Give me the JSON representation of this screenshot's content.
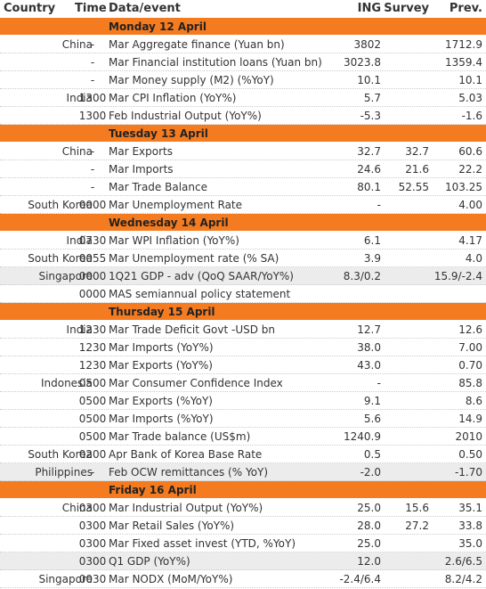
{
  "header": {
    "country": "Country",
    "time": "Time",
    "event": "Data/event",
    "ing": "ING",
    "survey": "Survey",
    "prev": "Prev."
  },
  "days": [
    {
      "title": "Monday 12 April",
      "rows": [
        {
          "country": "China",
          "time": "-",
          "event": "Mar Aggregate finance (Yuan bn)",
          "ing": "3802",
          "prev": "1712.9"
        },
        {
          "time": "-",
          "event": "Mar Financial institution loans (Yuan bn)",
          "ing": "3023.8",
          "prev": "1359.4"
        },
        {
          "time": "-",
          "event": "Mar Money supply (M2) (%YoY)",
          "ing": "10.1",
          "prev": "10.1"
        },
        {
          "country": "India",
          "time": "1300",
          "event": "Mar CPI Inflation (YoY%)",
          "ing": "5.7",
          "prev": "5.03"
        },
        {
          "time": "1300",
          "event": "Feb Industrial Output (YoY%)",
          "ing": "-5.3",
          "prev": "-1.6"
        }
      ]
    },
    {
      "title": "Tuesday 13 April",
      "rows": [
        {
          "country": "China",
          "time": "-",
          "event": "Mar Exports",
          "ing": "32.7",
          "survey": "32.7",
          "prev": "60.6"
        },
        {
          "time": "-",
          "event": "Mar Imports",
          "ing": "24.6",
          "survey": "21.6",
          "prev": "22.2"
        },
        {
          "time": "-",
          "event": "Mar Trade Balance",
          "ing": "80.1",
          "survey": "52.55",
          "prev": "103.25"
        },
        {
          "country": "South Korea",
          "time": "0000",
          "event": "Mar Unemployment Rate",
          "ing": "-",
          "prev": "4.00"
        }
      ]
    },
    {
      "title": "Wednesday 14 April",
      "rows": [
        {
          "country": "India",
          "time": "0730",
          "event": "Mar WPI Inflation (YoY%)",
          "ing": "6.1",
          "prev": "4.17"
        },
        {
          "country": "South Korea",
          "time": "0055",
          "event": "Mar Unemployment rate (% SA)",
          "ing": "3.9",
          "prev": "4.0"
        },
        {
          "country": "Singapore",
          "time": "0000",
          "event": "1Q21 GDP - adv (QoQ SAAR/YoY%)",
          "ing": "8.3/0.2",
          "prev": "15.9/-2.4",
          "shaded": true
        },
        {
          "time": "0000",
          "event": "MAS semiannual policy statement"
        }
      ]
    },
    {
      "title": "Thursday 15 April",
      "rows": [
        {
          "country": "India",
          "time": "1230",
          "event": "Mar Trade Deficit Govt -USD bn",
          "ing": "12.7",
          "prev": "12.6"
        },
        {
          "time": "1230",
          "event": "Mar Imports (YoY%)",
          "ing": "38.0",
          "prev": "7.00"
        },
        {
          "time": "1230",
          "event": "Mar Exports (YoY%)",
          "ing": "43.0",
          "prev": "0.70"
        },
        {
          "country": "Indonesia",
          "time": "0500",
          "event": "Mar Consumer Confidence Index",
          "ing": "-",
          "prev": "85.8"
        },
        {
          "time": "0500",
          "event": "Mar Exports (%YoY)",
          "ing": "9.1",
          "prev": "8.6"
        },
        {
          "time": "0500",
          "event": "Mar Imports (%YoY)",
          "ing": "5.6",
          "prev": "14.9"
        },
        {
          "time": "0500",
          "event": "Mar Trade balance (US$m)",
          "ing": "1240.9",
          "prev": "2010"
        },
        {
          "country": "South Korea",
          "time": "0200",
          "event": "Apr Bank of Korea Base Rate",
          "ing": "0.5",
          "prev": "0.50"
        },
        {
          "country": "Philippines",
          "time": "-",
          "event": "Feb OCW remittances (% YoY)",
          "ing": "-2.0",
          "prev": "-1.70",
          "shaded": true
        }
      ]
    },
    {
      "title": "Friday 16 April",
      "rows": [
        {
          "country": "China",
          "time": "0300",
          "event": "Mar Industrial Output (YoY%)",
          "ing": "25.0",
          "survey": "15.6",
          "prev": "35.1"
        },
        {
          "time": "0300",
          "event": "Mar Retail Sales (YoY%)",
          "ing": "28.0",
          "survey": "27.2",
          "prev": "33.8"
        },
        {
          "time": "0300",
          "event": "Mar Fixed asset invest (YTD, %YoY)",
          "ing": "25.0",
          "prev": "35.0"
        },
        {
          "time": "0300",
          "event": "Q1 GDP (YoY%)",
          "ing": "12.0",
          "prev": "2.6/6.5",
          "shaded": true
        },
        {
          "country": "Singapore",
          "time": "0030",
          "event": "Mar NODX (MoM/YoY%)",
          "ing": "-2.4/6.4",
          "prev": "8.2/4.2"
        }
      ]
    }
  ]
}
